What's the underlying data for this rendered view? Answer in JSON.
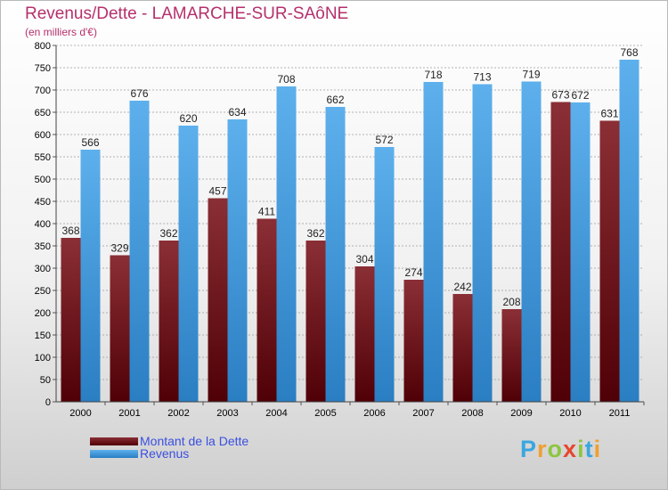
{
  "title": "Revenus/Dette - LAMARCHE-SUR-SAôNE",
  "subtitle": "(en milliers d'€)",
  "logo_text": "Proxiti",
  "colors": {
    "dette_dark": "#4f0006",
    "dette_light": "#8a2f35",
    "revenus_dark": "#2a7ec2",
    "revenus_light": "#5db0ec",
    "grid": "#9a9a9a",
    "axis_text": "#000000",
    "title": "#b5306c",
    "legend_text": "#3a4fe0"
  },
  "chart_data": {
    "type": "bar",
    "title": "Revenus/Dette - LAMARCHE-SUR-SAôNE",
    "subtitle": "(en milliers d'€)",
    "categories": [
      "2000",
      "2001",
      "2002",
      "2003",
      "2004",
      "2005",
      "2006",
      "2007",
      "2008",
      "2009",
      "2010",
      "2011"
    ],
    "series": [
      {
        "name": "Montant de la Dette",
        "values": [
          368,
          329,
          362,
          457,
          411,
          362,
          304,
          274,
          242,
          208,
          673,
          631
        ]
      },
      {
        "name": "Revenus",
        "values": [
          566,
          676,
          620,
          634,
          708,
          662,
          572,
          718,
          713,
          719,
          672,
          768
        ]
      }
    ],
    "ylim": [
      0,
      800
    ],
    "y_ticks": [
      0,
      50,
      100,
      150,
      200,
      250,
      300,
      350,
      400,
      450,
      500,
      550,
      600,
      650,
      700,
      750,
      800
    ],
    "grid": "horizontal dashed",
    "legend_position": "bottom-left",
    "data_labels": true
  }
}
